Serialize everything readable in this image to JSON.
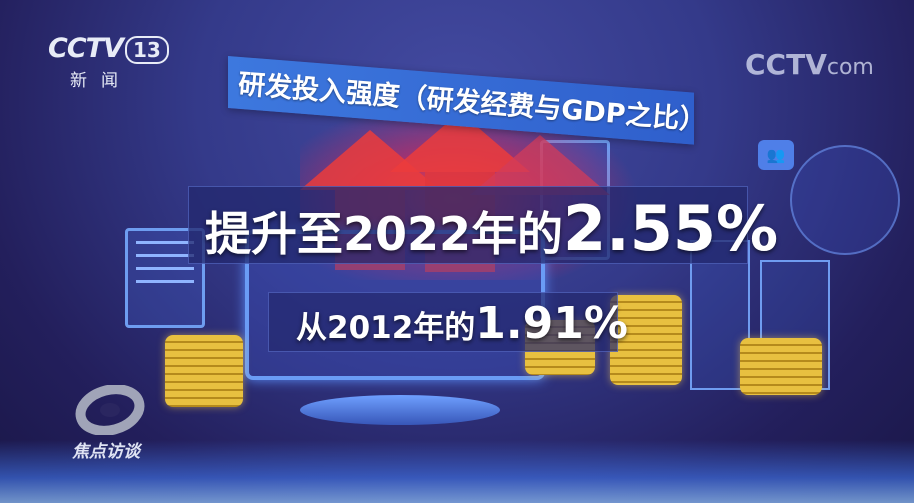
{
  "channel_logo": {
    "brand": "CCTV",
    "channel": "13",
    "name": "新闻"
  },
  "watermark": {
    "brand": "CCTV",
    "suffix": "com"
  },
  "program_logo": {
    "name": "焦点访谈",
    "icon": "swirl-emblem-icon"
  },
  "title_banner": "研发投入强度（研发经费与GDP之比）",
  "headline": {
    "prefix": "提升至2022年的",
    "value": "2.55%"
  },
  "subline": {
    "prefix": "从2012年的",
    "value": "1.91%"
  },
  "colors": {
    "banner": "#3d78de",
    "highlight": "#e63c3c",
    "coins": "#e8c040",
    "background": "#2b2f78"
  }
}
